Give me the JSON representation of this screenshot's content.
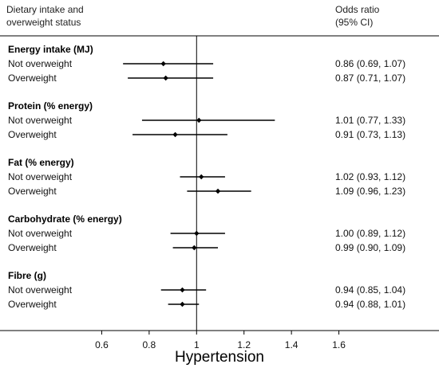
{
  "chart_data": {
    "type": "forest",
    "header": {
      "left": [
        "Dietary intake and",
        "overweight status"
      ],
      "right": [
        "Odds ratio",
        "(95% CI)"
      ]
    },
    "xlabel": "Hypertension",
    "xlim": [
      0.4,
      1.8
    ],
    "ticks": [
      0.6,
      0.8,
      1.0,
      1.2,
      1.4,
      1.6
    ],
    "tick_labels": [
      "0.6",
      "0.8",
      "1",
      "1.2",
      "1.4",
      "1.6"
    ],
    "reference_line": 1.0,
    "groups": [
      {
        "title": "Energy intake (MJ)",
        "rows": [
          {
            "label": "Not overweight",
            "or": 0.86,
            "lo": 0.69,
            "hi": 1.07,
            "text": "0.86 (0.69, 1.07)"
          },
          {
            "label": "Overweight",
            "or": 0.87,
            "lo": 0.71,
            "hi": 1.07,
            "text": "0.87 (0.71, 1.07)"
          }
        ]
      },
      {
        "title": "Protein (% energy)",
        "rows": [
          {
            "label": "Not overweight",
            "or": 1.01,
            "lo": 0.77,
            "hi": 1.33,
            "text": "1.01 (0.77, 1.33)"
          },
          {
            "label": "Overweight",
            "or": 0.91,
            "lo": 0.73,
            "hi": 1.13,
            "text": "0.91 (0.73, 1.13)"
          }
        ]
      },
      {
        "title": "Fat (% energy)",
        "rows": [
          {
            "label": "Not overweight",
            "or": 1.02,
            "lo": 0.93,
            "hi": 1.12,
            "text": "1.02 (0.93, 1.12)"
          },
          {
            "label": "Overweight",
            "or": 1.09,
            "lo": 0.96,
            "hi": 1.23,
            "text": "1.09 (0.96, 1.23)"
          }
        ]
      },
      {
        "title": "Carbohydrate (% energy)",
        "rows": [
          {
            "label": "Not overweight",
            "or": 1.0,
            "lo": 0.89,
            "hi": 1.12,
            "text": "1.00 (0.89, 1.12)"
          },
          {
            "label": "Overweight",
            "or": 0.99,
            "lo": 0.9,
            "hi": 1.09,
            "text": "0.99 (0.90, 1.09)"
          }
        ]
      },
      {
        "title": "Fibre (g)",
        "rows": [
          {
            "label": "Not overweight",
            "or": 0.94,
            "lo": 0.85,
            "hi": 1.04,
            "text": "0.94 (0.85, 1.04)"
          },
          {
            "label": "Overweight",
            "or": 0.94,
            "lo": 0.88,
            "hi": 1.01,
            "text": "0.94 (0.88, 1.01)"
          }
        ]
      }
    ]
  }
}
